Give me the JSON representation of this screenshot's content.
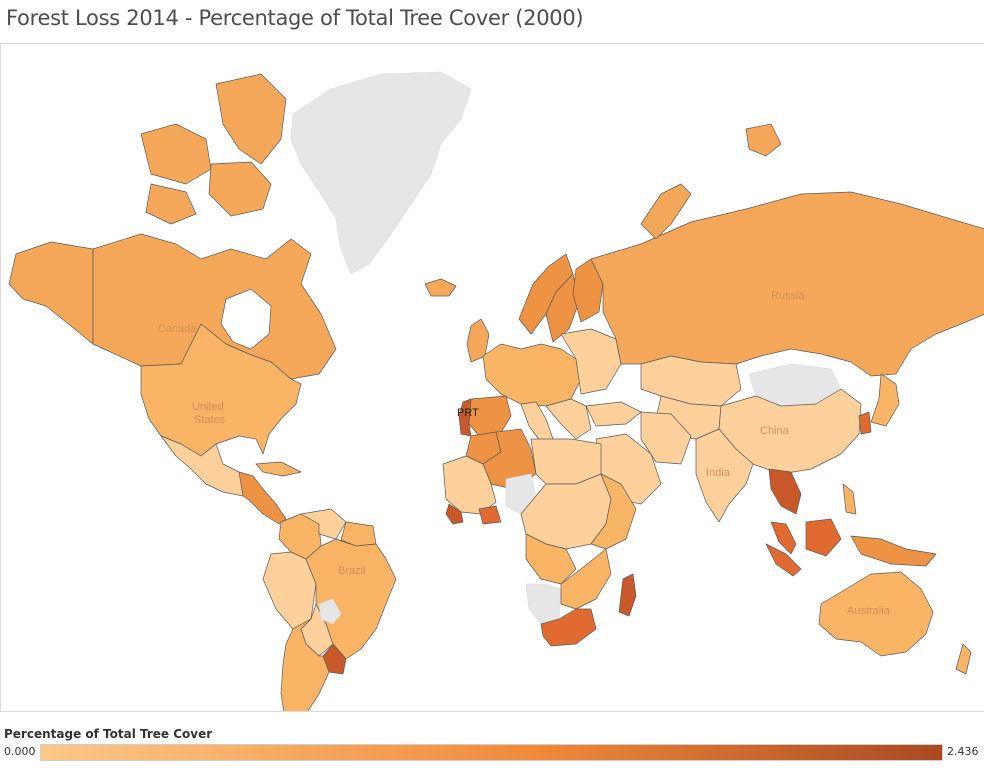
{
  "title": "Forest Loss 2014 - Percentage of Total Tree Cover (2000)",
  "map": {
    "labels": {
      "russia": "Russia",
      "canada": "Canada",
      "united_states_1": "United",
      "united_states_2": "States",
      "china": "China",
      "india": "India",
      "brazil": "Brazil",
      "australia": "Australia"
    },
    "mark_label": "PRT"
  },
  "legend": {
    "title": "Percentage of Total Tree Cover",
    "min": "0.000",
    "max": "2.436",
    "color_min": "#fdc888",
    "color_mid": "#f08a3a",
    "color_max": "#a94a22"
  },
  "colors": {
    "no_data": "#e6e6e6",
    "low": "#fdd09c",
    "medium": "#f9b466",
    "main": "#f5a85a",
    "mid_high": "#ee9243",
    "high": "#e06a30",
    "very_high": "#c9582a"
  }
}
